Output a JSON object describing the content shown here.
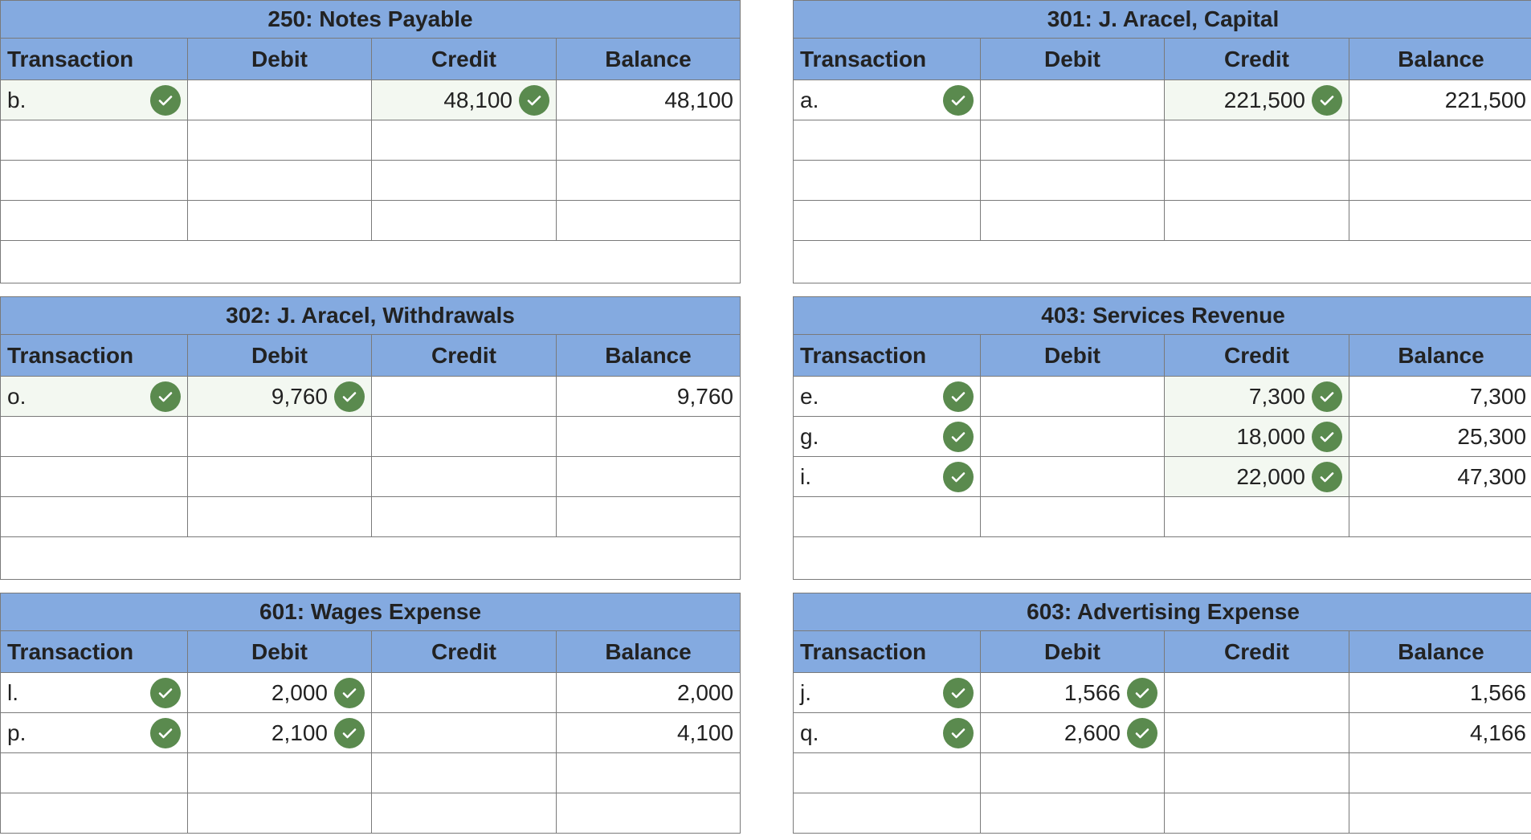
{
  "colors": {
    "header_bg": "#84aae0",
    "check_bg": "#5a8a4e",
    "border": "#7a7a7a"
  },
  "icons": {
    "check": "check-circle-icon"
  },
  "columns": {
    "transaction": "Transaction",
    "debit": "Debit",
    "credit": "Credit",
    "balance": "Balance"
  },
  "accounts": {
    "notes_payable": {
      "title": "250: Notes Payable",
      "rows": [
        {
          "tx": "b.",
          "debit": "",
          "credit": "48,100",
          "balance": "48,100"
        }
      ]
    },
    "capital": {
      "title": "301: J. Aracel, Capital",
      "rows": [
        {
          "tx": "a.",
          "debit": "",
          "credit": "221,500",
          "balance": "221,500"
        }
      ]
    },
    "withdrawals": {
      "title": "302: J. Aracel, Withdrawals",
      "rows": [
        {
          "tx": "o.",
          "debit": "9,760",
          "credit": "",
          "balance": "9,760"
        }
      ]
    },
    "services_revenue": {
      "title": "403: Services Revenue",
      "rows": [
        {
          "tx": "e.",
          "debit": "",
          "credit": "7,300",
          "balance": "7,300"
        },
        {
          "tx": "g.",
          "debit": "",
          "credit": "18,000",
          "balance": "25,300"
        },
        {
          "tx": "i.",
          "debit": "",
          "credit": "22,000",
          "balance": "47,300"
        }
      ]
    },
    "wages_expense": {
      "title": "601: Wages Expense",
      "rows": [
        {
          "tx": "l.",
          "debit": "2,000",
          "credit": "",
          "balance": "2,000"
        },
        {
          "tx": "p.",
          "debit": "2,100",
          "credit": "",
          "balance": "4,100"
        }
      ]
    },
    "advertising_expense": {
      "title": "603: Advertising Expense",
      "rows": [
        {
          "tx": "j.",
          "debit": "1,566",
          "credit": "",
          "balance": "1,566"
        },
        {
          "tx": "q.",
          "debit": "2,600",
          "credit": "",
          "balance": "4,166"
        }
      ]
    }
  }
}
